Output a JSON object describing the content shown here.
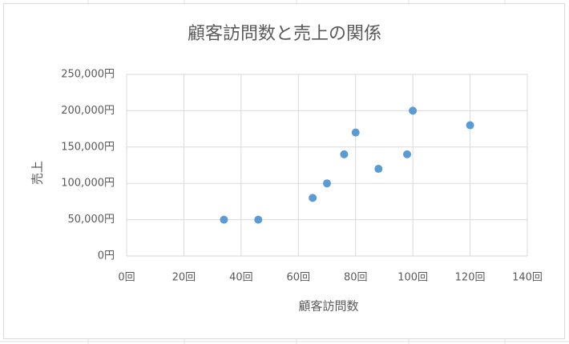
{
  "chart_data": {
    "type": "scatter",
    "title": "顧客訪問数と売上の関係",
    "x_label": "顧客訪問数",
    "y_label": "売上",
    "series": [
      {
        "color": "#5b9bd5",
        "x": [
          34,
          46,
          65,
          70,
          76,
          80,
          88,
          98,
          100,
          120
        ],
        "values": [
          50000,
          50000,
          80000,
          100000,
          140000,
          170000,
          120000,
          140000,
          200000,
          180000
        ]
      }
    ],
    "xlim": [
      0,
      140
    ],
    "xticks": [
      {
        "value": 0,
        "label": "0回"
      },
      {
        "value": 20,
        "label": "20回"
      },
      {
        "value": 40,
        "label": "40回"
      },
      {
        "value": 60,
        "label": "60回"
      },
      {
        "value": 80,
        "label": "80回"
      },
      {
        "value": 100,
        "label": "100回"
      },
      {
        "value": 120,
        "label": "120回"
      },
      {
        "value": 140,
        "label": "140回"
      }
    ],
    "ylim": [
      0,
      250000
    ],
    "yticks": [
      {
        "value": 0,
        "label": "0円"
      },
      {
        "value": 50000,
        "label": "50,000円"
      },
      {
        "value": 100000,
        "label": "100,000円"
      },
      {
        "value": 150000,
        "label": "150,000円"
      },
      {
        "value": 200000,
        "label": "200,000円"
      },
      {
        "value": 250000,
        "label": "250,000円"
      }
    ],
    "grid": true
  }
}
